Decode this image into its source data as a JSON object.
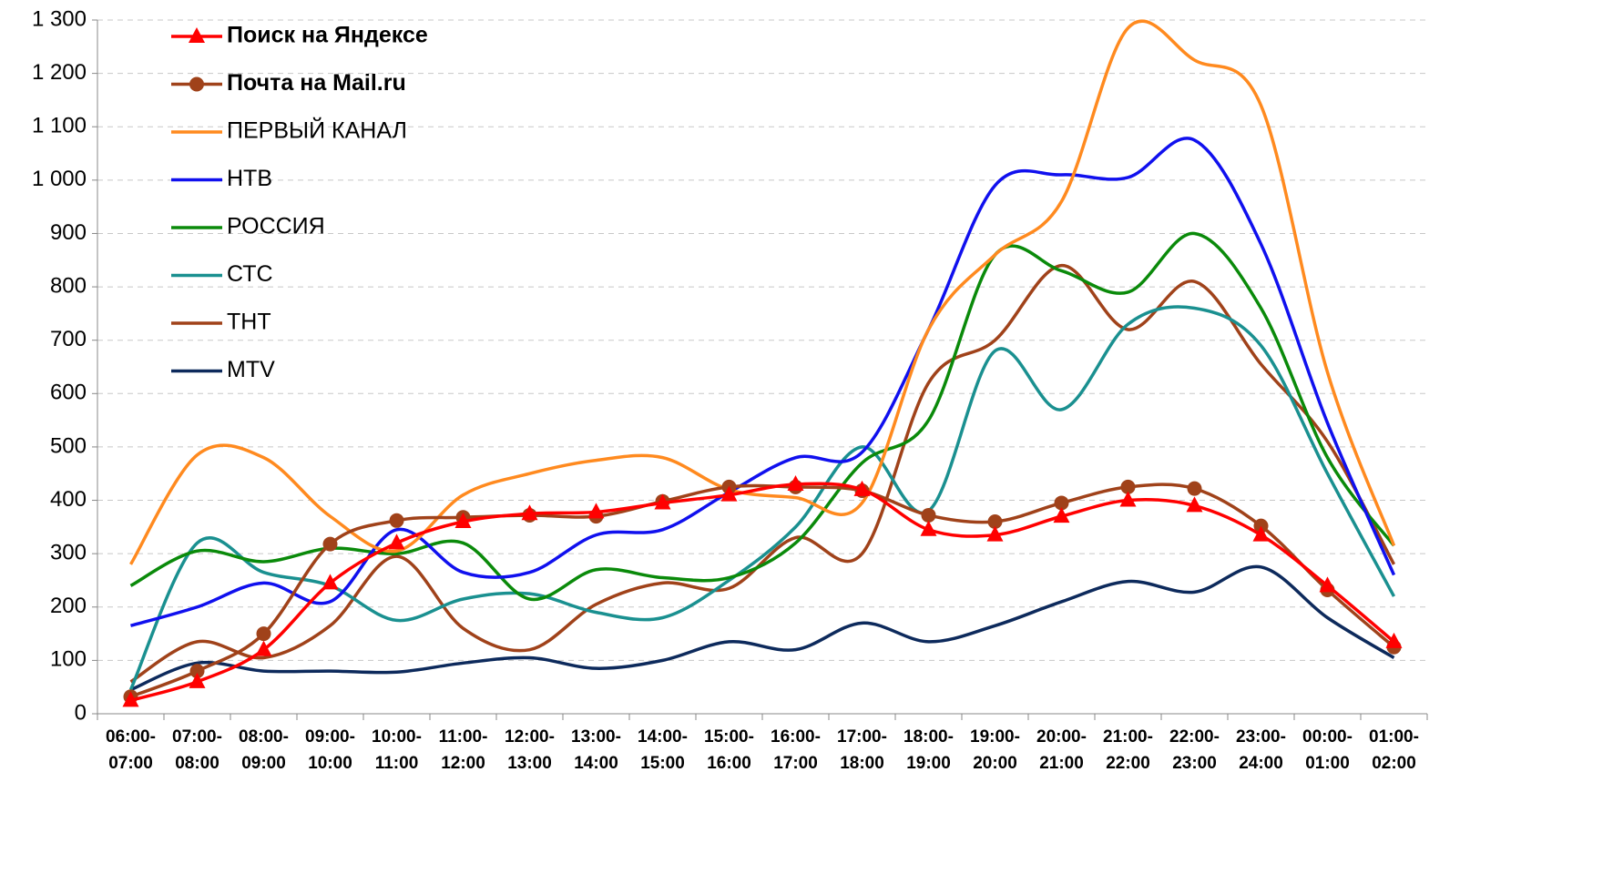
{
  "chart_data": {
    "type": "line",
    "categories": [
      [
        "06:00-",
        "07:00"
      ],
      [
        "07:00-",
        "08:00"
      ],
      [
        "08:00-",
        "09:00"
      ],
      [
        "09:00-",
        "10:00"
      ],
      [
        "10:00-",
        "11:00"
      ],
      [
        "11:00-",
        "12:00"
      ],
      [
        "12:00-",
        "13:00"
      ],
      [
        "13:00-",
        "14:00"
      ],
      [
        "14:00-",
        "15:00"
      ],
      [
        "15:00-",
        "16:00"
      ],
      [
        "16:00-",
        "17:00"
      ],
      [
        "17:00-",
        "18:00"
      ],
      [
        "18:00-",
        "19:00"
      ],
      [
        "19:00-",
        "20:00"
      ],
      [
        "20:00-",
        "21:00"
      ],
      [
        "21:00-",
        "22:00"
      ],
      [
        "22:00-",
        "23:00"
      ],
      [
        "23:00-",
        "24:00"
      ],
      [
        "00:00-",
        "01:00"
      ],
      [
        "01:00-",
        "02:00"
      ]
    ],
    "ylim": [
      0,
      1300
    ],
    "yticks": [
      0,
      100,
      200,
      300,
      400,
      500,
      600,
      700,
      800,
      900,
      {
        "value": 1000,
        "label": "1 000"
      },
      {
        "value": 1100,
        "label": "1 100"
      },
      {
        "value": 1200,
        "label": "1 200"
      },
      {
        "value": 1300,
        "label": "1 300"
      }
    ],
    "grid": true,
    "legend": "upper left",
    "series": [
      {
        "name": "Поиск на Яндексе",
        "color": "#ff0000",
        "marker": "triangle",
        "bold": true,
        "values": [
          25,
          60,
          120,
          245,
          320,
          360,
          375,
          378,
          395,
          410,
          430,
          420,
          345,
          335,
          370,
          400,
          390,
          335,
          240,
          135
        ]
      },
      {
        "name": "Почта на Mail.ru",
        "color": "#a0421a",
        "marker": "circle",
        "bold": true,
        "values": [
          32,
          80,
          150,
          318,
          362,
          368,
          372,
          370,
          398,
          425,
          425,
          418,
          372,
          360,
          395,
          425,
          422,
          352,
          232,
          125
        ]
      },
      {
        "name": "ПЕРВЫЙ КАНАЛ",
        "color": "#ff8a1f",
        "values": [
          280,
          485,
          480,
          370,
          305,
          410,
          450,
          475,
          480,
          420,
          405,
          395,
          720,
          860,
          960,
          1285,
          1225,
          1140,
          640,
          315
        ]
      },
      {
        "name": "НТВ",
        "color": "#1010ee",
        "values": [
          165,
          200,
          245,
          210,
          345,
          265,
          265,
          335,
          345,
          415,
          480,
          490,
          720,
          990,
          1010,
          1005,
          1075,
          880,
          545,
          260
        ]
      },
      {
        "name": "РОССИЯ",
        "color": "#0a8a0a",
        "values": [
          240,
          305,
          285,
          310,
          300,
          320,
          215,
          270,
          255,
          255,
          320,
          470,
          550,
          860,
          830,
          790,
          900,
          760,
          480,
          315
        ]
      },
      {
        "name": "СТС",
        "color": "#1a9090",
        "values": [
          45,
          320,
          265,
          240,
          175,
          215,
          225,
          190,
          180,
          250,
          350,
          500,
          380,
          680,
          570,
          730,
          760,
          690,
          450,
          220
        ]
      },
      {
        "name": "ТНТ",
        "color": "#a0421a",
        "values": [
          60,
          135,
          105,
          165,
          295,
          160,
          120,
          205,
          245,
          235,
          330,
          300,
          620,
          700,
          840,
          720,
          810,
          655,
          510,
          280
        ]
      },
      {
        "name": "MTV",
        "color": "#0d2a5c",
        "values": [
          45,
          95,
          80,
          80,
          78,
          95,
          105,
          85,
          100,
          135,
          120,
          170,
          135,
          165,
          210,
          248,
          228,
          275,
          180,
          105
        ]
      }
    ]
  }
}
